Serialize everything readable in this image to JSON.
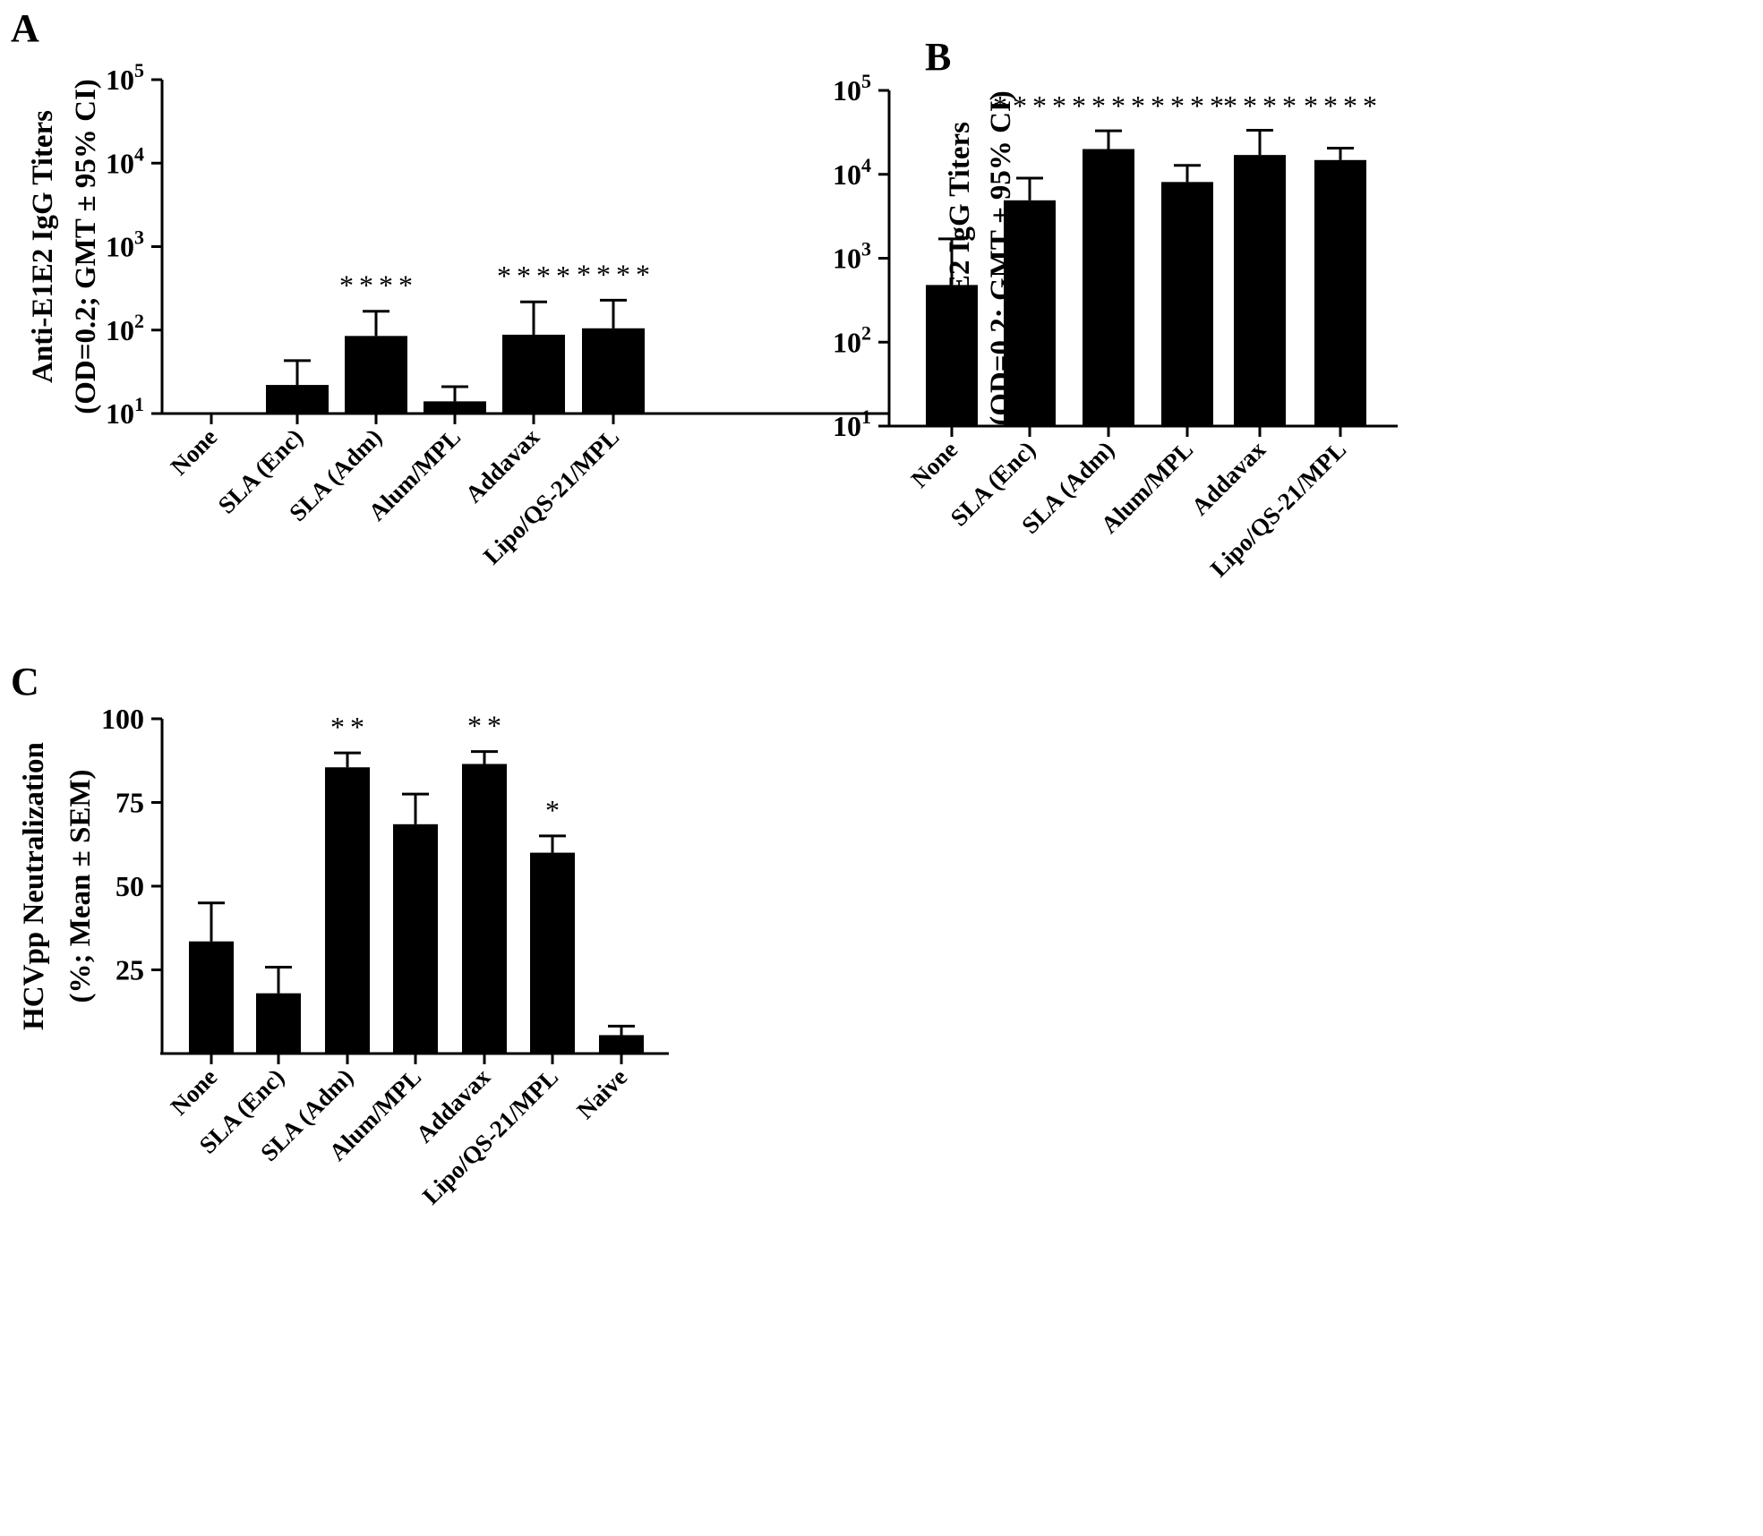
{
  "chart_data": [
    {
      "panel": "A",
      "type": "bar",
      "scale": "log",
      "ylabel": [
        "Anti-E1E2 IgG Titers",
        "(OD=0.2; GMT ± 95% CI)"
      ],
      "ylim": [
        10,
        100000
      ],
      "yticks": [
        {
          "base": "10",
          "exp": "1",
          "value": 10
        },
        {
          "base": "10",
          "exp": "2",
          "value": 100
        },
        {
          "base": "10",
          "exp": "3",
          "value": 1000
        },
        {
          "base": "10",
          "exp": "4",
          "value": 10000
        },
        {
          "base": "10",
          "exp": "5",
          "value": 100000
        }
      ],
      "categories": [
        "None",
        "SLA (Enc)",
        "SLA (Adm)",
        "Alum/MPL",
        "Addavax",
        "Lipo/QS-21/MPL"
      ],
      "values": [
        10,
        22,
        85,
        14,
        88,
        105
      ],
      "error_upper": [
        10,
        43,
        168,
        21,
        218,
        228
      ],
      "significance": [
        "",
        "",
        "****",
        "",
        "****",
        "****"
      ]
    },
    {
      "panel": "B",
      "type": "bar",
      "scale": "log",
      "ylabel": [
        "Anti-E1E2 IgG Titers",
        "(OD=0.2; GMT ± 95% CI)"
      ],
      "ylim": [
        10,
        100000
      ],
      "yticks": [
        {
          "base": "10",
          "exp": "1",
          "value": 10
        },
        {
          "base": "10",
          "exp": "2",
          "value": 100
        },
        {
          "base": "10",
          "exp": "3",
          "value": 1000
        },
        {
          "base": "10",
          "exp": "4",
          "value": 10000
        },
        {
          "base": "10",
          "exp": "5",
          "value": 100000
        }
      ],
      "categories": [
        "None",
        "SLA (Enc)",
        "SLA (Adm)",
        "Alum/MPL",
        "Addavax",
        "Lipo/QS-21/MPL"
      ],
      "values": [
        480,
        4900,
        20000,
        8100,
        17000,
        14800
      ],
      "error_upper": [
        1700,
        9000,
        33000,
        12800,
        33500,
        20500
      ],
      "significance": [
        "",
        "****",
        "****",
        "****",
        "****",
        "****"
      ]
    },
    {
      "panel": "C",
      "type": "bar",
      "scale": "linear",
      "ylabel": [
        "HCVpp Neutralization",
        "(%; Mean ± SEM)"
      ],
      "ylim": [
        0,
        100
      ],
      "yticks": [
        {
          "label": "25",
          "value": 25
        },
        {
          "label": "50",
          "value": 50
        },
        {
          "label": "75",
          "value": 75
        },
        {
          "label": "100",
          "value": 100
        }
      ],
      "categories": [
        "None",
        "SLA (Enc)",
        "SLA (Adm)",
        "Alum/MPL",
        "Addavax",
        "Lipo/QS-21/MPL",
        "Naive"
      ],
      "values": [
        33.5,
        18,
        85.5,
        68.5,
        86.5,
        60,
        5.5
      ],
      "error_upper": [
        45,
        25.8,
        89.8,
        77.5,
        90.2,
        65,
        8.2
      ],
      "significance": [
        "",
        "",
        "**",
        "",
        "**",
        "*",
        ""
      ]
    }
  ]
}
